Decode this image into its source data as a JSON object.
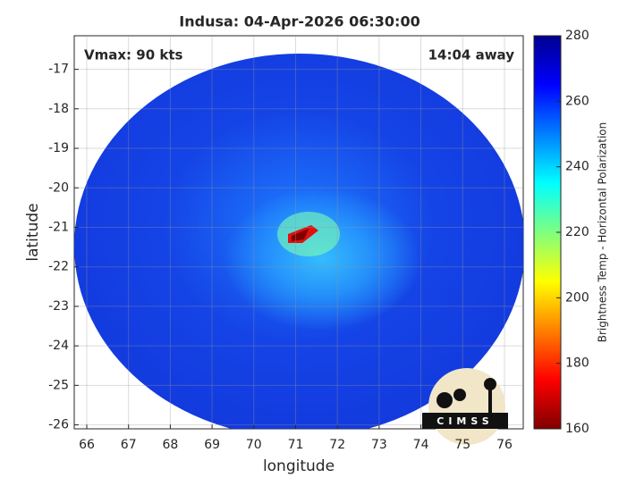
{
  "chart_data": {
    "type": "image",
    "title": "Indusa: 04-Apr-2026 06:30:00",
    "left_annotation": "Vmax: 90 kts",
    "right_annotation": "14:04 away",
    "xlabel": "longitude",
    "ylabel": "latitude",
    "xlim": [
      65.7,
      76.45
    ],
    "xticks": [
      66,
      67,
      68,
      69,
      70,
      71,
      72,
      73,
      74,
      75,
      76
    ],
    "ylim": [
      -26.1,
      -16.15
    ],
    "yticks": [
      -26,
      -25,
      -24,
      -23,
      -22,
      -21,
      -20,
      -19,
      -18,
      -17
    ],
    "grid": true,
    "colorbar": {
      "label": "Brightness Temp - Horizontal Polarization",
      "lim": [
        160,
        280
      ],
      "ticks": [
        160,
        180,
        200,
        220,
        240,
        260,
        280
      ],
      "colormap": "jet"
    },
    "logo_text": "CIMSS"
  }
}
